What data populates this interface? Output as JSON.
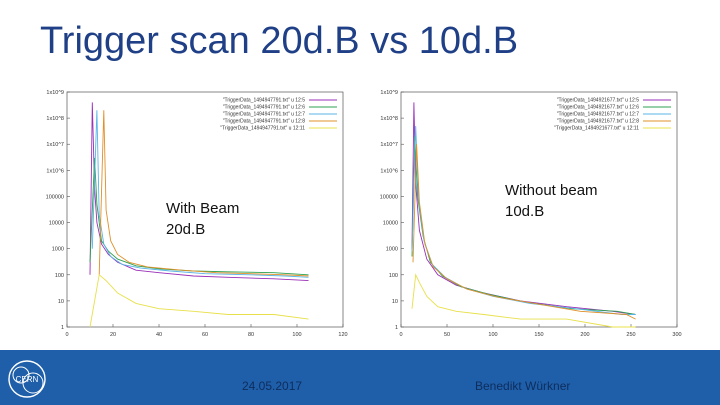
{
  "slide": {
    "title": "Trigger scan 20d.B vs 10d.B",
    "date": "24.05.2017",
    "author": "Benedikt Würkner",
    "logo_icon": "cern-logo-icon",
    "footer_color": "#1f5faa",
    "title_color": "#1f3f86"
  },
  "annotations": {
    "left": [
      "With Beam",
      "20d.B"
    ],
    "right": [
      "Without beam",
      "10d.B"
    ]
  },
  "chart_data": [
    {
      "type": "line",
      "y_scale": "log",
      "xlim": [
        0,
        120
      ],
      "ylim": [
        1,
        1000000000
      ],
      "x_ticks": [
        "0",
        "20",
        "40",
        "60",
        "80",
        "100",
        "120"
      ],
      "y_ticks": [
        "1",
        "10",
        "100",
        "1000",
        "10000",
        "100000",
        "1x10^6",
        "1x10^7",
        "1x10^8",
        "1x10^9"
      ],
      "legend_position": "top-right",
      "series": [
        {
          "name": "\"TriggerData_1494947791.txt\" u 12:5",
          "color": "#9a2fb8",
          "points": [
            [
              10,
              100
            ],
            [
              11,
              400000000
            ],
            [
              12,
              200000
            ],
            [
              13,
              10000
            ],
            [
              15,
              1500
            ],
            [
              18,
              600
            ],
            [
              22,
              300
            ],
            [
              30,
              150
            ],
            [
              40,
              120
            ],
            [
              55,
              90
            ],
            [
              70,
              80
            ],
            [
              90,
              70
            ],
            [
              105,
              60
            ]
          ]
        },
        {
          "name": "\"TriggerData_1494947791.txt\" u 12:6",
          "color": "#2ea050",
          "points": [
            [
              10,
              300
            ],
            [
              12,
              3000000
            ],
            [
              13,
              50000
            ],
            [
              15,
              2000
            ],
            [
              18,
              800
            ],
            [
              22,
              400
            ],
            [
              30,
              220
            ],
            [
              40,
              170
            ],
            [
              55,
              140
            ],
            [
              70,
              130
            ],
            [
              90,
              120
            ],
            [
              105,
              100
            ]
          ]
        },
        {
          "name": "\"TriggerData_1494947791.txt\" u 12:7",
          "color": "#5ab4e6",
          "points": [
            [
              11,
              1000
            ],
            [
              13,
              200000000
            ],
            [
              14,
              20000
            ],
            [
              16,
              1500
            ],
            [
              19,
              500
            ],
            [
              24,
              250
            ],
            [
              32,
              180
            ],
            [
              45,
              140
            ],
            [
              60,
              110
            ],
            [
              80,
              100
            ],
            [
              95,
              90
            ],
            [
              105,
              80
            ]
          ]
        },
        {
          "name": "\"TriggerData_1494947791.txt\" u 12:8",
          "color": "#e0902a",
          "points": [
            [
              14,
              100
            ],
            [
              16,
              200000000
            ],
            [
              17,
              30000
            ],
            [
              19,
              2000
            ],
            [
              22,
              600
            ],
            [
              27,
              300
            ],
            [
              35,
              200
            ],
            [
              50,
              150
            ],
            [
              65,
              120
            ],
            [
              80,
              110
            ],
            [
              95,
              100
            ],
            [
              105,
              90
            ]
          ]
        },
        {
          "name": "\"TriggerData_1494947791.txt\" u 12:11",
          "color": "#e8e04a",
          "points": [
            [
              10,
              1
            ],
            [
              14,
              100
            ],
            [
              17,
              60
            ],
            [
              22,
              20
            ],
            [
              30,
              8
            ],
            [
              40,
              5
            ],
            [
              55,
              4
            ],
            [
              70,
              3
            ],
            [
              90,
              3
            ],
            [
              105,
              2
            ]
          ]
        }
      ]
    },
    {
      "type": "line",
      "y_scale": "log",
      "xlim": [
        0,
        300
      ],
      "ylim": [
        1,
        1000000000
      ],
      "x_ticks": [
        "0",
        "50",
        "100",
        "150",
        "200",
        "250",
        "300"
      ],
      "y_ticks": [
        "1",
        "10",
        "100",
        "1000",
        "10000",
        "100000",
        "1x10^6",
        "1x10^7",
        "1x10^8",
        "1x10^9"
      ],
      "legend_position": "top-right",
      "series": [
        {
          "name": "\"TriggerData_1494921677.txt\" u 12:5",
          "color": "#9a2fb8",
          "points": [
            [
              12,
              1000
            ],
            [
              14,
              400000000
            ],
            [
              16,
              300000
            ],
            [
              20,
              5000
            ],
            [
              28,
              400
            ],
            [
              40,
              100
            ],
            [
              60,
              40
            ],
            [
              90,
              20
            ],
            [
              130,
              10
            ],
            [
              180,
              6
            ],
            [
              230,
              4
            ],
            [
              255,
              3
            ]
          ]
        },
        {
          "name": "\"TriggerData_1494921677.txt\" u 12:6",
          "color": "#2ea050",
          "points": [
            [
              12,
              500
            ],
            [
              15,
              20000000
            ],
            [
              18,
              100000
            ],
            [
              24,
              3000
            ],
            [
              32,
              300
            ],
            [
              45,
              90
            ],
            [
              65,
              35
            ],
            [
              95,
              18
            ],
            [
              135,
              9
            ],
            [
              185,
              5
            ],
            [
              235,
              4
            ],
            [
              255,
              3
            ]
          ]
        },
        {
          "name": "\"TriggerData_1494921677.txt\" u 12:7",
          "color": "#5ab4e6",
          "points": [
            [
              12,
              800
            ],
            [
              16,
              50000000
            ],
            [
              19,
              80000
            ],
            [
              25,
              2000
            ],
            [
              34,
              250
            ],
            [
              48,
              80
            ],
            [
              70,
              30
            ],
            [
              100,
              15
            ],
            [
              140,
              8
            ],
            [
              190,
              5
            ],
            [
              240,
              3
            ],
            [
              255,
              3
            ]
          ]
        },
        {
          "name": "\"TriggerData_1494921677.txt\" u 12:8",
          "color": "#e0902a",
          "points": [
            [
              13,
              300
            ],
            [
              17,
              10000000
            ],
            [
              20,
              60000
            ],
            [
              26,
              1500
            ],
            [
              35,
              200
            ],
            [
              50,
              70
            ],
            [
              72,
              28
            ],
            [
              105,
              14
            ],
            [
              145,
              8
            ],
            [
              195,
              4
            ],
            [
              245,
              3
            ],
            [
              255,
              2
            ]
          ]
        },
        {
          "name": "\"TriggerData_1494921677.txt\" u 12:11",
          "color": "#e8e04a",
          "points": [
            [
              12,
              5
            ],
            [
              16,
              100
            ],
            [
              20,
              50
            ],
            [
              28,
              15
            ],
            [
              40,
              6
            ],
            [
              60,
              4
            ],
            [
              90,
              3
            ],
            [
              130,
              2
            ],
            [
              180,
              2
            ],
            [
              230,
              1
            ],
            [
              255,
              1
            ]
          ]
        }
      ]
    }
  ]
}
